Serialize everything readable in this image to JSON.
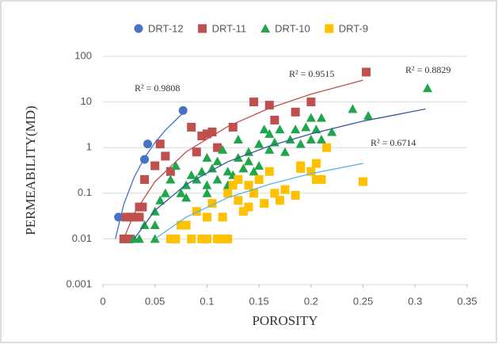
{
  "chart_data": {
    "type": "scatter",
    "log_y": true,
    "grid": true,
    "xlabel": "POROSITY",
    "ylabel": "PERMEABILITY(MD)",
    "xlim": [
      0,
      0.35
    ],
    "xticks": [
      0,
      0.05,
      0.1,
      0.15,
      0.2,
      0.25,
      0.3,
      0.35
    ],
    "ylim": [
      0.001,
      100
    ],
    "yticks": [
      0.001,
      0.01,
      0.1,
      1,
      10,
      100
    ],
    "legend": "top",
    "series": [
      {
        "name": "DRT-12",
        "color": "#4472c4",
        "marker": "circle",
        "x": [
          0.015,
          0.04,
          0.043,
          0.077
        ],
        "values": [
          0.03,
          0.55,
          1.2,
          6.5
        ],
        "trendline": {
          "color": "#4472c4",
          "label": "R² = 0.9808",
          "x": [
            0.012,
            0.02,
            0.03,
            0.04,
            0.05,
            0.06,
            0.07,
            0.078
          ],
          "values": [
            0.01,
            0.057,
            0.225,
            0.6,
            1.28,
            2.4,
            4.0,
            6.0
          ]
        }
      },
      {
        "name": "DRT-11",
        "color": "#c0504d",
        "marker": "square",
        "x": [
          0.02,
          0.025,
          0.022,
          0.028,
          0.03,
          0.035,
          0.038,
          0.035,
          0.04,
          0.05,
          0.055,
          0.06,
          0.065,
          0.09,
          0.085,
          0.095,
          0.1,
          0.105,
          0.11,
          0.125,
          0.145,
          0.16,
          0.165,
          0.185,
          0.2,
          0.253
        ],
        "values": [
          0.01,
          0.01,
          0.03,
          0.03,
          0.03,
          0.05,
          0.05,
          0.03,
          0.2,
          0.4,
          1.2,
          0.65,
          0.3,
          0.8,
          2.8,
          1.8,
          2,
          2.2,
          1,
          2.8,
          10,
          8.5,
          4,
          6,
          10,
          45
        ],
        "trendline": {
          "color": "#c0504d",
          "label": "R² = 0.9515",
          "x": [
            0.02,
            0.03,
            0.05,
            0.08,
            0.12,
            0.16,
            0.2,
            0.25
          ],
          "values": [
            0.01,
            0.036,
            0.18,
            0.81,
            2.9,
            7.3,
            14.8,
            30
          ]
        }
      },
      {
        "name": "DRT-10",
        "color": "#1fa64a",
        "marker": "triangle",
        "x": [
          0.03,
          0.035,
          0.04,
          0.05,
          0.05,
          0.055,
          0.05,
          0.06,
          0.065,
          0.07,
          0.075,
          0.08,
          0.08,
          0.085,
          0.09,
          0.095,
          0.1,
          0.1,
          0.1,
          0.105,
          0.11,
          0.11,
          0.115,
          0.12,
          0.12,
          0.125,
          0.13,
          0.13,
          0.135,
          0.14,
          0.14,
          0.145,
          0.15,
          0.15,
          0.155,
          0.16,
          0.16,
          0.165,
          0.17,
          0.175,
          0.18,
          0.185,
          0.19,
          0.195,
          0.2,
          0.2,
          0.205,
          0.21,
          0.21,
          0.22,
          0.24,
          0.255,
          0.312
        ],
        "values": [
          0.01,
          0.01,
          0.02,
          0.01,
          0.04,
          0.07,
          0.02,
          0.1,
          0.2,
          0.4,
          0.1,
          0.08,
          0.15,
          0.25,
          0.2,
          0.3,
          0.1,
          0.6,
          0.15,
          0.35,
          0.5,
          0.2,
          0.9,
          0.3,
          0.15,
          0.25,
          0.6,
          1.5,
          0.35,
          0.5,
          0.8,
          0.3,
          0.4,
          1.2,
          2.5,
          0.9,
          2,
          1.3,
          2.5,
          0.8,
          1.5,
          2.5,
          1.2,
          2.8,
          1.5,
          4.5,
          2.5,
          4.5,
          1.5,
          2.2,
          7,
          5,
          20
        ],
        "trendline": {
          "color": "#34589c",
          "label": "R² = 0.8829",
          "x": [
            0.03,
            0.05,
            0.08,
            0.12,
            0.16,
            0.2,
            0.25,
            0.31
          ],
          "values": [
            0.01,
            0.042,
            0.156,
            0.49,
            1.08,
            2.0,
            3.8,
            7
          ]
        }
      },
      {
        "name": "DRT-9",
        "color": "#ffc000",
        "marker": "square",
        "x": [
          0.065,
          0.07,
          0.075,
          0.08,
          0.085,
          0.09,
          0.095,
          0.1,
          0.1,
          0.105,
          0.11,
          0.115,
          0.12,
          0.115,
          0.12,
          0.125,
          0.13,
          0.13,
          0.135,
          0.14,
          0.14,
          0.145,
          0.15,
          0.155,
          0.16,
          0.165,
          0.17,
          0.175,
          0.185,
          0.19,
          0.19,
          0.2,
          0.205,
          0.205,
          0.21,
          0.215,
          0.25
        ],
        "values": [
          0.01,
          0.01,
          0.02,
          0.02,
          0.01,
          0.04,
          0.01,
          0.01,
          0.03,
          0.06,
          0.01,
          0.01,
          0.01,
          0.03,
          0.1,
          0.15,
          0.2,
          0.07,
          0.04,
          0.05,
          0.15,
          0.1,
          0.2,
          0.06,
          0.3,
          0.1,
          0.07,
          0.12,
          0.09,
          0.4,
          0.35,
          0.3,
          0.45,
          0.2,
          0.2,
          1,
          0.18
        ],
        "trendline": {
          "color": "#5ab4e6",
          "label": "R² = 0.6714",
          "x": [
            0.05,
            0.08,
            0.12,
            0.16,
            0.2,
            0.25
          ],
          "values": [
            0.01,
            0.03,
            0.08,
            0.157,
            0.27,
            0.45
          ]
        }
      }
    ]
  }
}
